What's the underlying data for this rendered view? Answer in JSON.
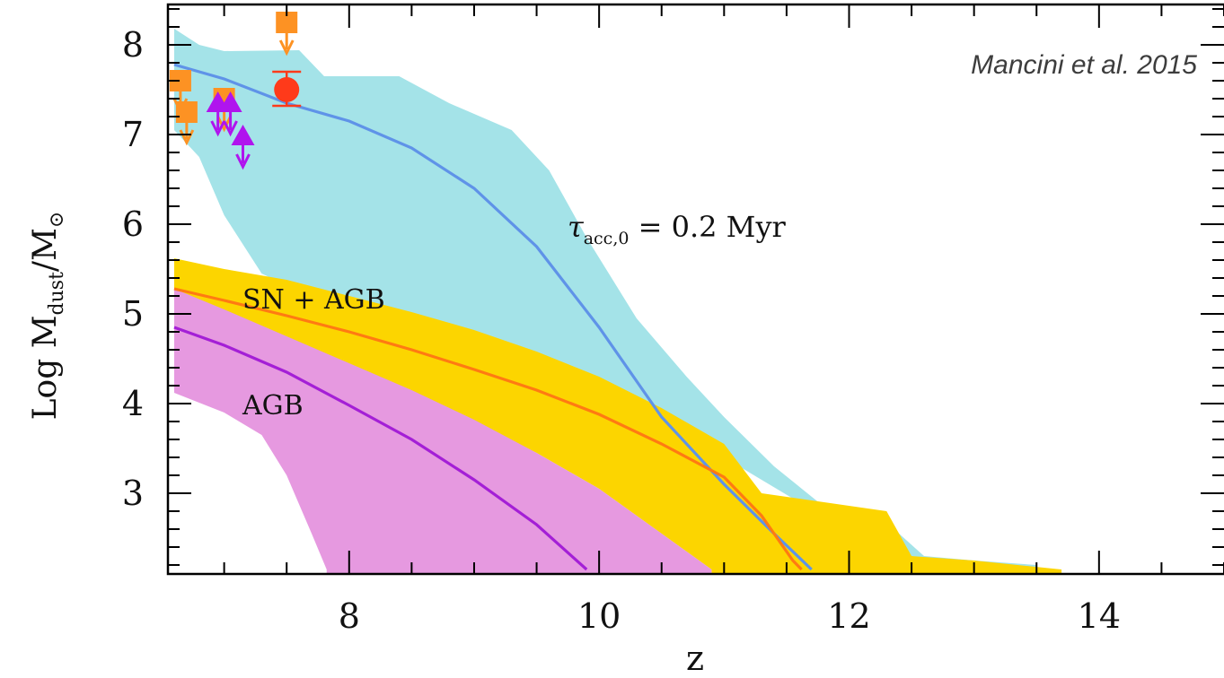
{
  "chart_data": {
    "type": "area",
    "credit": "Mancini et al. 2015",
    "xlabel": "z",
    "ylabel": {
      "base": "Log  M",
      "sub": "dust",
      "tail": "/M",
      "sun": "⊙"
    },
    "xlim": [
      6.55,
      15.0
    ],
    "ylim": [
      2.1,
      8.45
    ],
    "xticks": [
      8,
      10,
      12,
      14
    ],
    "yticks": [
      3,
      4,
      5,
      6,
      7,
      8
    ],
    "x_minor_step": 0.5,
    "y_minor_step": 0.2,
    "grid": false,
    "annotations": {
      "tau": {
        "symbol": "τ",
        "sub": "acc,0",
        "text": " =  0.2  Myr"
      },
      "sn_agb": "SN + AGB",
      "agb": "AGB"
    },
    "bands": [
      {
        "id": "tau-band",
        "color": "#a4e3e8",
        "upper": [
          [
            6.6,
            8.18
          ],
          [
            6.8,
            8.0
          ],
          [
            7.0,
            7.93
          ],
          [
            7.6,
            7.94
          ],
          [
            7.8,
            7.65
          ],
          [
            8.4,
            7.65
          ],
          [
            8.8,
            7.35
          ],
          [
            9.3,
            7.05
          ],
          [
            9.6,
            6.6
          ],
          [
            9.9,
            5.85
          ],
          [
            10.3,
            4.95
          ],
          [
            10.7,
            4.3
          ],
          [
            11.0,
            3.85
          ],
          [
            11.4,
            3.3
          ],
          [
            11.8,
            2.85
          ],
          [
            12.2,
            2.8
          ],
          [
            12.6,
            2.3
          ],
          [
            13.0,
            2.25
          ],
          [
            13.5,
            2.2
          ]
        ],
        "lower": [
          [
            6.6,
            7.05
          ],
          [
            6.8,
            6.75
          ],
          [
            7.0,
            6.1
          ],
          [
            7.3,
            5.45
          ],
          [
            7.6,
            5.25
          ],
          [
            8.0,
            5.05
          ],
          [
            8.6,
            4.7
          ],
          [
            9.2,
            4.35
          ],
          [
            9.8,
            4.1
          ],
          [
            10.4,
            3.75
          ],
          [
            11.0,
            3.4
          ],
          [
            11.6,
            2.9
          ],
          [
            12.0,
            2.5
          ],
          [
            12.4,
            2.3
          ],
          [
            12.6,
            2.25
          ],
          [
            13.0,
            2.2
          ]
        ]
      },
      {
        "id": "sn-agb-band",
        "color": "#fcd500",
        "upper": [
          [
            6.6,
            5.62
          ],
          [
            7.0,
            5.5
          ],
          [
            7.5,
            5.38
          ],
          [
            8.0,
            5.2
          ],
          [
            8.5,
            5.02
          ],
          [
            9.0,
            4.82
          ],
          [
            9.5,
            4.58
          ],
          [
            10.0,
            4.3
          ],
          [
            10.5,
            3.95
          ],
          [
            11.0,
            3.55
          ],
          [
            11.3,
            3.0
          ],
          [
            11.8,
            2.9
          ],
          [
            12.3,
            2.8
          ],
          [
            12.5,
            2.3
          ],
          [
            13.0,
            2.25
          ],
          [
            13.7,
            2.15
          ]
        ],
        "lower": [
          [
            6.6,
            5.22
          ],
          [
            7.0,
            5.0
          ],
          [
            7.5,
            4.72
          ],
          [
            8.0,
            4.42
          ],
          [
            8.5,
            4.12
          ],
          [
            9.0,
            3.8
          ],
          [
            9.5,
            3.45
          ],
          [
            10.0,
            3.05
          ],
          [
            10.5,
            2.55
          ],
          [
            10.9,
            2.15
          ]
        ]
      },
      {
        "id": "agb-band",
        "color": "#e699e0",
        "upper": [
          [
            6.6,
            5.28
          ],
          [
            7.0,
            5.05
          ],
          [
            7.5,
            4.75
          ],
          [
            8.0,
            4.45
          ],
          [
            8.5,
            4.15
          ],
          [
            9.0,
            3.82
          ],
          [
            9.5,
            3.45
          ],
          [
            10.0,
            3.05
          ],
          [
            10.5,
            2.55
          ],
          [
            10.9,
            2.15
          ]
        ],
        "lower": [
          [
            6.6,
            4.12
          ],
          [
            7.0,
            3.9
          ],
          [
            7.3,
            3.65
          ],
          [
            7.5,
            3.2
          ],
          [
            7.7,
            2.55
          ],
          [
            7.82,
            2.15
          ]
        ]
      }
    ],
    "series": [
      {
        "id": "tau-median",
        "color": "#5f93e8",
        "values": [
          [
            6.6,
            7.78
          ],
          [
            7.0,
            7.62
          ],
          [
            7.5,
            7.35
          ],
          [
            8.0,
            7.15
          ],
          [
            8.5,
            6.85
          ],
          [
            9.0,
            6.4
          ],
          [
            9.5,
            5.75
          ],
          [
            10.0,
            4.85
          ],
          [
            10.5,
            3.85
          ],
          [
            11.0,
            3.1
          ],
          [
            11.4,
            2.55
          ],
          [
            11.7,
            2.15
          ]
        ]
      },
      {
        "id": "sn-agb-median",
        "color": "#ff7a12",
        "values": [
          [
            6.6,
            5.28
          ],
          [
            7.0,
            5.15
          ],
          [
            7.5,
            4.98
          ],
          [
            8.0,
            4.8
          ],
          [
            8.5,
            4.6
          ],
          [
            9.0,
            4.38
          ],
          [
            9.5,
            4.15
          ],
          [
            10.0,
            3.88
          ],
          [
            10.5,
            3.55
          ],
          [
            11.0,
            3.18
          ],
          [
            11.3,
            2.75
          ],
          [
            11.55,
            2.25
          ],
          [
            11.62,
            2.15
          ]
        ]
      },
      {
        "id": "agb-median",
        "color": "#a41fd6",
        "values": [
          [
            6.6,
            4.85
          ],
          [
            7.0,
            4.65
          ],
          [
            7.5,
            4.35
          ],
          [
            8.0,
            3.98
          ],
          [
            8.5,
            3.6
          ],
          [
            9.0,
            3.15
          ],
          [
            9.5,
            2.65
          ],
          [
            9.9,
            2.15
          ]
        ]
      }
    ],
    "observations": {
      "squares": {
        "color": "#fd9223",
        "points": [
          [
            6.65,
            7.6
          ],
          [
            6.7,
            7.25
          ],
          [
            7.0,
            7.4
          ],
          [
            7.5,
            8.25
          ]
        ]
      },
      "triangles": {
        "color": "#b014ee",
        "points": [
          [
            6.95,
            7.35
          ],
          [
            7.05,
            7.35
          ],
          [
            7.15,
            6.98
          ]
        ]
      },
      "circle": {
        "color": "#ff3a1a",
        "point": [
          7.5,
          7.5
        ],
        "err": [
          7.32,
          7.7
        ]
      }
    }
  }
}
